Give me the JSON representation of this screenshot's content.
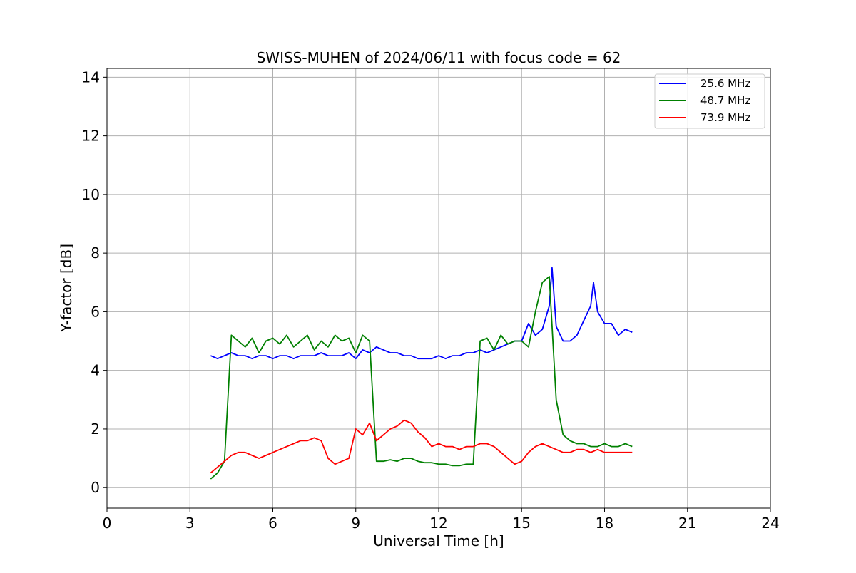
{
  "chart_data": {
    "type": "line",
    "title": "SWISS-MUHEN of 2024/06/11 with focus code = 62",
    "xlabel": "Universal Time [h]",
    "ylabel": "Y-factor [dB]",
    "xlim": [
      0,
      24
    ],
    "ylim": [
      -0.7,
      14.3
    ],
    "xticks": [
      0,
      3,
      6,
      9,
      12,
      15,
      18,
      21,
      24
    ],
    "yticks": [
      0,
      2,
      4,
      6,
      8,
      10,
      12,
      14
    ],
    "grid": true,
    "legend_position": "top-right",
    "series": [
      {
        "name": "25.6 MHz",
        "color": "#0000ff",
        "x": [
          3.75,
          4.0,
          4.25,
          4.5,
          4.75,
          5.0,
          5.25,
          5.5,
          5.75,
          6.0,
          6.25,
          6.5,
          6.75,
          7.0,
          7.25,
          7.5,
          7.75,
          8.0,
          8.25,
          8.5,
          8.75,
          9.0,
          9.25,
          9.5,
          9.75,
          10.0,
          10.25,
          10.5,
          10.75,
          11.0,
          11.25,
          11.5,
          11.75,
          12.0,
          12.25,
          12.5,
          12.75,
          13.0,
          13.25,
          13.5,
          13.75,
          14.0,
          14.25,
          14.5,
          14.75,
          15.0,
          15.25,
          15.5,
          15.75,
          16.0,
          16.1,
          16.25,
          16.5,
          16.75,
          17.0,
          17.25,
          17.5,
          17.6,
          17.75,
          18.0,
          18.25,
          18.5,
          18.75,
          19.0
        ],
        "y": [
          4.5,
          4.4,
          4.5,
          4.6,
          4.5,
          4.5,
          4.4,
          4.5,
          4.5,
          4.4,
          4.5,
          4.5,
          4.4,
          4.5,
          4.5,
          4.5,
          4.6,
          4.5,
          4.5,
          4.5,
          4.6,
          4.4,
          4.7,
          4.6,
          4.8,
          4.7,
          4.6,
          4.6,
          4.5,
          4.5,
          4.4,
          4.4,
          4.4,
          4.5,
          4.4,
          4.5,
          4.5,
          4.6,
          4.6,
          4.7,
          4.6,
          4.7,
          4.8,
          4.9,
          5.0,
          5.0,
          5.6,
          5.2,
          5.4,
          6.2,
          7.5,
          5.5,
          5.0,
          5.0,
          5.2,
          5.7,
          6.2,
          7.0,
          6.0,
          5.6,
          5.6,
          5.2,
          5.4,
          5.3
        ]
      },
      {
        "name": "48.7 MHz",
        "color": "#008000",
        "x": [
          3.75,
          4.0,
          4.25,
          4.5,
          4.75,
          5.0,
          5.25,
          5.5,
          5.75,
          6.0,
          6.25,
          6.5,
          6.75,
          7.0,
          7.25,
          7.5,
          7.75,
          8.0,
          8.25,
          8.5,
          8.75,
          9.0,
          9.25,
          9.5,
          9.75,
          10.0,
          10.25,
          10.5,
          10.75,
          11.0,
          11.25,
          11.5,
          11.75,
          12.0,
          12.25,
          12.5,
          12.75,
          13.0,
          13.25,
          13.5,
          13.75,
          14.0,
          14.25,
          14.5,
          14.75,
          15.0,
          15.25,
          15.5,
          15.75,
          16.0,
          16.25,
          16.5,
          16.75,
          17.0,
          17.25,
          17.5,
          17.75,
          18.0,
          18.25,
          18.5,
          18.75,
          19.0
        ],
        "y": [
          0.3,
          0.5,
          0.9,
          5.2,
          5.0,
          4.8,
          5.1,
          4.6,
          5.0,
          5.1,
          4.9,
          5.2,
          4.8,
          5.0,
          5.2,
          4.7,
          5.0,
          4.8,
          5.2,
          5.0,
          5.1,
          4.6,
          5.2,
          5.0,
          0.9,
          0.9,
          0.95,
          0.9,
          1.0,
          1.0,
          0.9,
          0.85,
          0.85,
          0.8,
          0.8,
          0.75,
          0.75,
          0.8,
          0.8,
          5.0,
          5.1,
          4.7,
          5.2,
          4.9,
          5.0,
          5.0,
          4.8,
          6.0,
          7.0,
          7.2,
          3.0,
          1.8,
          1.6,
          1.5,
          1.5,
          1.4,
          1.4,
          1.5,
          1.4,
          1.4,
          1.5,
          1.4
        ]
      },
      {
        "name": "73.9 MHz",
        "color": "#ff0000",
        "x": [
          3.75,
          4.0,
          4.25,
          4.5,
          4.75,
          5.0,
          5.25,
          5.5,
          5.75,
          6.0,
          6.25,
          6.5,
          6.75,
          7.0,
          7.25,
          7.5,
          7.75,
          8.0,
          8.25,
          8.5,
          8.75,
          9.0,
          9.25,
          9.5,
          9.75,
          10.0,
          10.25,
          10.5,
          10.75,
          11.0,
          11.25,
          11.5,
          11.75,
          12.0,
          12.25,
          12.5,
          12.75,
          13.0,
          13.25,
          13.5,
          13.75,
          14.0,
          14.25,
          14.5,
          14.75,
          15.0,
          15.25,
          15.5,
          15.75,
          16.0,
          16.25,
          16.5,
          16.75,
          17.0,
          17.25,
          17.5,
          17.75,
          18.0,
          18.25,
          18.5,
          18.75,
          19.0
        ],
        "y": [
          0.5,
          0.7,
          0.9,
          1.1,
          1.2,
          1.2,
          1.1,
          1.0,
          1.1,
          1.2,
          1.3,
          1.4,
          1.5,
          1.6,
          1.6,
          1.7,
          1.6,
          1.0,
          0.8,
          0.9,
          1.0,
          2.0,
          1.8,
          2.2,
          1.6,
          1.8,
          2.0,
          2.1,
          2.3,
          2.2,
          1.9,
          1.7,
          1.4,
          1.5,
          1.4,
          1.4,
          1.3,
          1.4,
          1.4,
          1.5,
          1.5,
          1.4,
          1.2,
          1.0,
          0.8,
          0.9,
          1.2,
          1.4,
          1.5,
          1.4,
          1.3,
          1.2,
          1.2,
          1.3,
          1.3,
          1.2,
          1.3,
          1.2,
          1.2,
          1.2,
          1.2,
          1.2
        ]
      }
    ]
  }
}
